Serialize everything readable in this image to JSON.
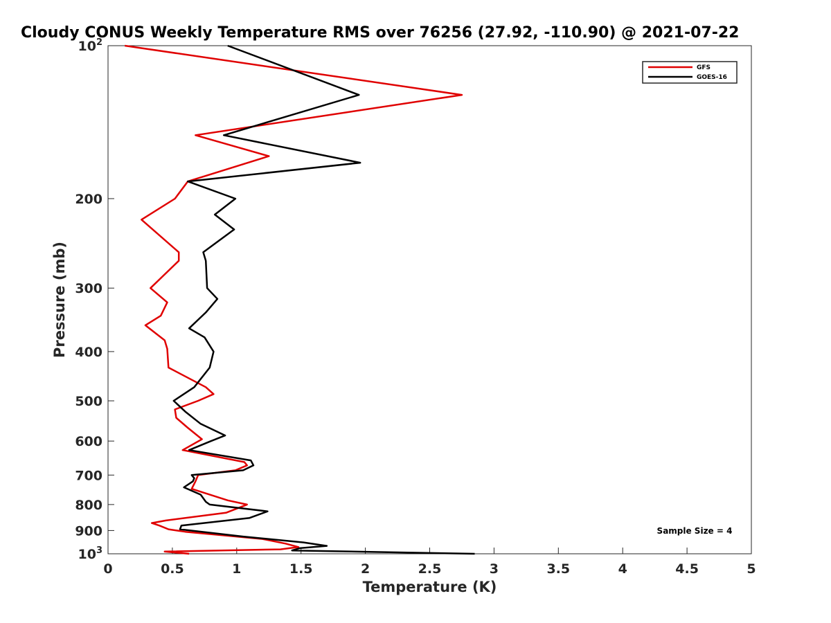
{
  "chart_data": {
    "type": "line",
    "title": "Cloudy CONUS Weekly Temperature RMS over 76256 (27.92, -110.90) @ 2021-07-22",
    "xlabel": "Temperature (K)",
    "ylabel": "Pressure (mb)",
    "xlim": [
      0,
      5
    ],
    "ylim": [
      100,
      1000
    ],
    "yscale": "log",
    "y_reversed": true,
    "x_ticks": [
      "0",
      "0.5",
      "1",
      "1.5",
      "2",
      "2.5",
      "3",
      "3.5",
      "4",
      "4.5",
      "5"
    ],
    "x_tick_values": [
      0,
      0.5,
      1,
      1.5,
      2,
      2.5,
      3,
      3.5,
      4,
      4.5,
      5
    ],
    "y_ticks": [
      {
        "value": 100,
        "base": "10",
        "exp": "2"
      },
      {
        "value": 200,
        "label": "200"
      },
      {
        "value": 300,
        "label": "300"
      },
      {
        "value": 400,
        "label": "400"
      },
      {
        "value": 500,
        "label": "500"
      },
      {
        "value": 600,
        "label": "600"
      },
      {
        "value": 700,
        "label": "700"
      },
      {
        "value": 800,
        "label": "800"
      },
      {
        "value": 900,
        "label": "900"
      },
      {
        "value": 1000,
        "base": "10",
        "exp": "3"
      }
    ],
    "grid": false,
    "legend_position": "top-right",
    "annotation": "Sample Size = 4",
    "series": [
      {
        "name": "GFS",
        "color": "#e00000",
        "points": [
          [
            0.13,
            100
          ],
          [
            2.75,
            125
          ],
          [
            0.68,
            150
          ],
          [
            1.25,
            165
          ],
          [
            0.62,
            185
          ],
          [
            0.52,
            200
          ],
          [
            0.26,
            220
          ],
          [
            0.55,
            255
          ],
          [
            0.55,
            265
          ],
          [
            0.33,
            300
          ],
          [
            0.46,
            320
          ],
          [
            0.41,
            340
          ],
          [
            0.29,
            355
          ],
          [
            0.44,
            380
          ],
          [
            0.46,
            395
          ],
          [
            0.47,
            430
          ],
          [
            0.76,
            470
          ],
          [
            0.82,
            485
          ],
          [
            0.7,
            500
          ],
          [
            0.52,
            520
          ],
          [
            0.53,
            540
          ],
          [
            0.62,
            565
          ],
          [
            0.73,
            595
          ],
          [
            0.58,
            625
          ],
          [
            1.06,
            660
          ],
          [
            1.08,
            670
          ],
          [
            0.99,
            685
          ],
          [
            0.7,
            700
          ],
          [
            0.68,
            720
          ],
          [
            0.65,
            745
          ],
          [
            0.93,
            785
          ],
          [
            1.08,
            800
          ],
          [
            0.92,
            830
          ],
          [
            0.45,
            860
          ],
          [
            0.34,
            870
          ],
          [
            0.4,
            880
          ],
          [
            0.47,
            895
          ],
          [
            0.6,
            905
          ],
          [
            1.2,
            935
          ],
          [
            1.38,
            955
          ],
          [
            1.48,
            970
          ],
          [
            1.34,
            980
          ],
          [
            0.44,
            990
          ],
          [
            0.63,
            1000
          ]
        ]
      },
      {
        "name": "GOES-16",
        "color": "#000000",
        "points": [
          [
            0.93,
            100
          ],
          [
            1.95,
            125
          ],
          [
            0.9,
            150
          ],
          [
            1.96,
            170
          ],
          [
            0.62,
            185
          ],
          [
            0.99,
            200
          ],
          [
            0.83,
            215
          ],
          [
            0.98,
            230
          ],
          [
            0.74,
            255
          ],
          [
            0.76,
            265
          ],
          [
            0.77,
            300
          ],
          [
            0.85,
            315
          ],
          [
            0.76,
            335
          ],
          [
            0.63,
            360
          ],
          [
            0.75,
            375
          ],
          [
            0.82,
            400
          ],
          [
            0.79,
            430
          ],
          [
            0.67,
            470
          ],
          [
            0.51,
            500
          ],
          [
            0.6,
            525
          ],
          [
            0.72,
            555
          ],
          [
            0.91,
            585
          ],
          [
            0.8,
            600
          ],
          [
            0.63,
            625
          ],
          [
            1.11,
            655
          ],
          [
            1.13,
            670
          ],
          [
            1.05,
            685
          ],
          [
            0.65,
            700
          ],
          [
            0.67,
            710
          ],
          [
            0.66,
            720
          ],
          [
            0.59,
            740
          ],
          [
            0.72,
            765
          ],
          [
            0.76,
            790
          ],
          [
            0.79,
            800
          ],
          [
            1.24,
            825
          ],
          [
            1.1,
            850
          ],
          [
            0.57,
            880
          ],
          [
            0.56,
            895
          ],
          [
            1.05,
            925
          ],
          [
            1.52,
            950
          ],
          [
            1.7,
            965
          ],
          [
            1.49,
            975
          ],
          [
            1.43,
            985
          ],
          [
            2.85,
            1000
          ]
        ]
      }
    ]
  }
}
